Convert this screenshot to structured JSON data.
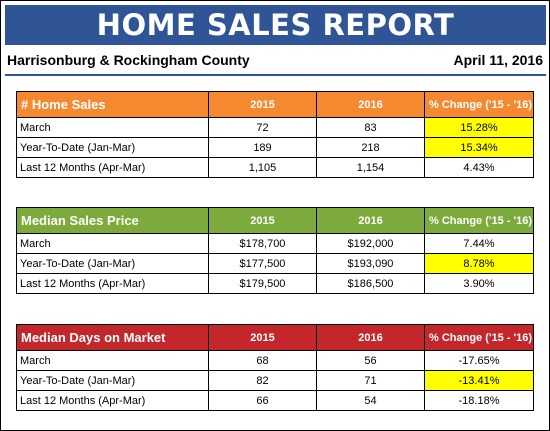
{
  "header": {
    "title": "HOME SALES REPORT",
    "region": "Harrisonburg & Rockingham County",
    "date": "April 11, 2016"
  },
  "colors": {
    "banner": "#2f5597",
    "sales_header": "#f4892f",
    "price_header": "#7dab3b",
    "days_header": "#c3272b",
    "highlight": "#ffff00"
  },
  "tables": [
    {
      "title": "# Home Sales",
      "columns": [
        "2015",
        "2016",
        "% Change ('15 - '16)"
      ],
      "rows": [
        {
          "label": "March",
          "v2015": "72",
          "v2016": "83",
          "change": "15.28%",
          "highlight": true
        },
        {
          "label": "Year-To-Date (Jan-Mar)",
          "v2015": "189",
          "v2016": "218",
          "change": "15.34%",
          "highlight": true
        },
        {
          "label": "Last 12 Months (Apr-Mar)",
          "v2015": "1,105",
          "v2016": "1,154",
          "change": "4.43%",
          "highlight": false
        }
      ]
    },
    {
      "title": "Median Sales Price",
      "columns": [
        "2015",
        "2016",
        "% Change ('15 - '16)"
      ],
      "rows": [
        {
          "label": "March",
          "v2015": "$178,700",
          "v2016": "$192,000",
          "change": "7.44%",
          "highlight": false
        },
        {
          "label": "Year-To-Date (Jan-Mar)",
          "v2015": "$177,500",
          "v2016": "$193,090",
          "change": "8.78%",
          "highlight": true
        },
        {
          "label": "Last 12 Months (Apr-Mar)",
          "v2015": "$179,500",
          "v2016": "$186,500",
          "change": "3.90%",
          "highlight": false
        }
      ]
    },
    {
      "title": "Median Days on Market",
      "columns": [
        "2015",
        "2016",
        "% Change ('15 - '16)"
      ],
      "rows": [
        {
          "label": "March",
          "v2015": "68",
          "v2016": "56",
          "change": "-17.65%",
          "highlight": false
        },
        {
          "label": "Year-To-Date (Jan-Mar)",
          "v2015": "82",
          "v2016": "71",
          "change": "-13.41%",
          "highlight": true
        },
        {
          "label": "Last 12 Months (Apr-Mar)",
          "v2015": "66",
          "v2016": "54",
          "change": "-18.18%",
          "highlight": false
        }
      ]
    }
  ]
}
